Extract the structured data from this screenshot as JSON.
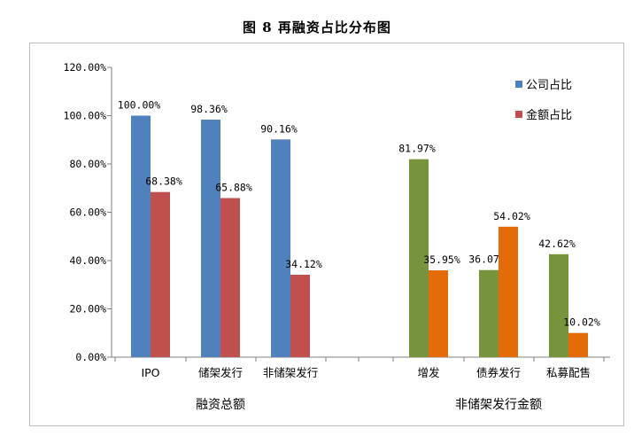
{
  "title": "图 8  再融资占比分布图",
  "chart_data": {
    "type": "bar",
    "ylim": [
      0,
      120
    ],
    "y_ticks": [
      "0.00%",
      "20.00%",
      "40.00%",
      "60.00%",
      "80.00%",
      "100.00%",
      "120.00%"
    ],
    "grid": false,
    "legend_position": "top-right",
    "groups": [
      {
        "label": "融资总额",
        "categories": [
          "IPO",
          "储架发行",
          "非储架发行"
        ],
        "series": [
          {
            "name": "公司占比",
            "color": "#4F81BD",
            "values": [
              100.0,
              98.36,
              90.16
            ],
            "labels": [
              "100.00%",
              "98.36%",
              "90.16%"
            ]
          },
          {
            "name": "金额占比",
            "color": "#C0504D",
            "values": [
              68.38,
              65.88,
              34.12
            ],
            "labels": [
              "68.38%",
              "65.88%",
              "34.12%"
            ]
          }
        ]
      },
      {
        "label": "非储架发行金额",
        "categories": [
          "增发",
          "债券发行",
          "私募配售"
        ],
        "series": [
          {
            "color": "#77933C",
            "values": [
              81.97,
              36.07,
              42.62
            ],
            "labels": [
              "81.97%",
              "36.07%",
              "42.62%"
            ]
          },
          {
            "color": "#E36C09",
            "values": [
              35.95,
              54.02,
              10.02
            ],
            "labels": [
              "35.95%",
              "54.02%",
              "10.02%"
            ]
          }
        ]
      }
    ],
    "legend": [
      {
        "name": "公司占比",
        "color": "#4F81BD"
      },
      {
        "name": "金额占比",
        "color": "#C0504D"
      }
    ]
  }
}
